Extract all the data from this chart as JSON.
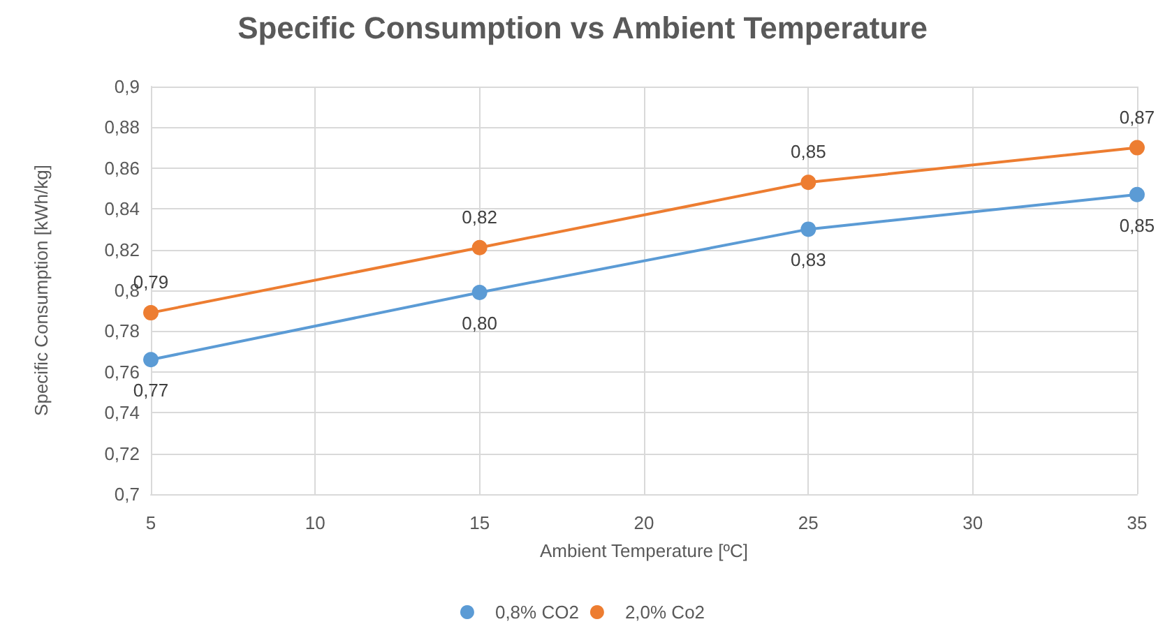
{
  "chart_data": {
    "type": "line",
    "title": "Specific Consumption vs Ambient Temperature",
    "xlabel": "Ambient Temperature [ºC]",
    "ylabel": "Specific Consumption [kWh/kg]",
    "x": [
      5,
      15,
      25,
      35
    ],
    "series": [
      {
        "name": "0,8% CO2",
        "color": "#5b9bd5",
        "values": [
          0.766,
          0.799,
          0.83,
          0.847
        ],
        "value_labels": [
          "0,77",
          "0,80",
          "0,83",
          "0,85"
        ]
      },
      {
        "name": "2,0% Co2",
        "color": "#ed7d31",
        "values": [
          0.789,
          0.821,
          0.853,
          0.87
        ],
        "value_labels": [
          "0,79",
          "0,82",
          "0,85",
          "0,87"
        ]
      }
    ],
    "xlim": [
      5,
      35
    ],
    "xticks": [
      5,
      10,
      15,
      20,
      25,
      30,
      35
    ],
    "ylim": [
      0.7,
      0.9
    ],
    "yticks": [
      {
        "value": 0.7,
        "label": "0,7"
      },
      {
        "value": 0.72,
        "label": "0,72"
      },
      {
        "value": 0.74,
        "label": "0,74"
      },
      {
        "value": 0.76,
        "label": "0,76"
      },
      {
        "value": 0.78,
        "label": "0,78"
      },
      {
        "value": 0.8,
        "label": "0,8"
      },
      {
        "value": 0.82,
        "label": "0,82"
      },
      {
        "value": 0.84,
        "label": "0,84"
      },
      {
        "value": 0.86,
        "label": "0,86"
      },
      {
        "value": 0.88,
        "label": "0,88"
      },
      {
        "value": 0.9,
        "label": "0,9"
      }
    ],
    "grid": true,
    "legend": "bottom",
    "marker": "circle",
    "line_style": "solid"
  }
}
